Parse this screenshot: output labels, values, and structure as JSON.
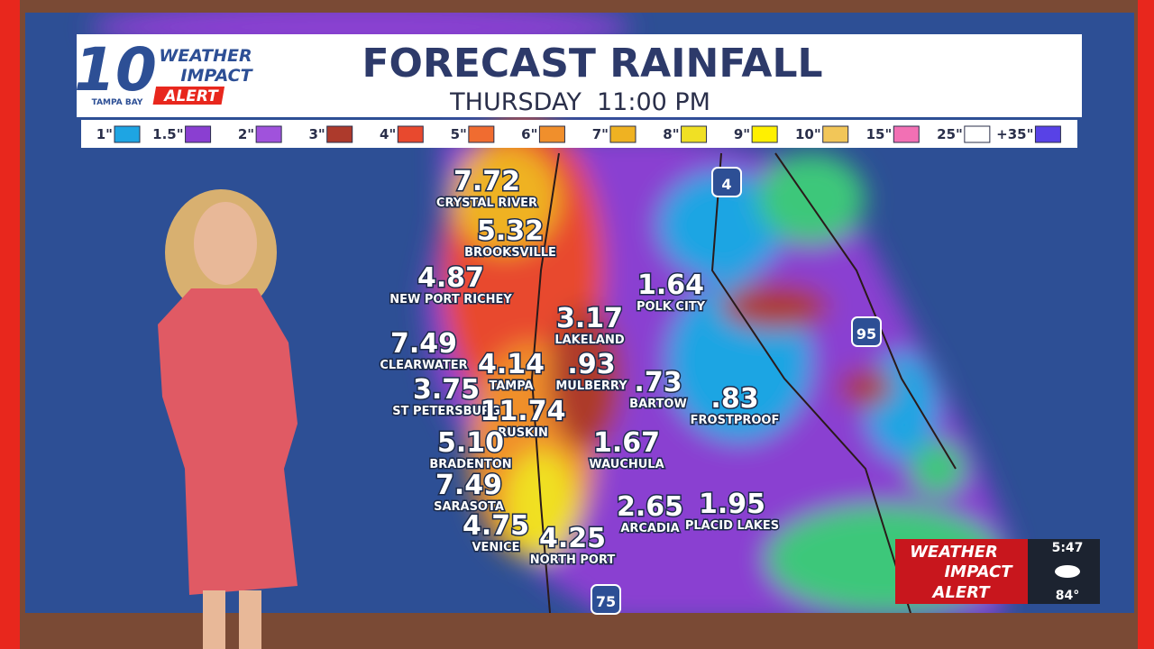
{
  "header": {
    "brand_number": "10",
    "brand_station": "TAMPA BAY",
    "brand_line1": "WEATHER",
    "brand_line2": "IMPACT",
    "brand_line3": "ALERT",
    "title": "FORECAST RAINFALL",
    "subtitle_day": "THURSDAY",
    "subtitle_time": "11:00 PM"
  },
  "legend": [
    {
      "label": "1\"",
      "color": "#1ea5e3"
    },
    {
      "label": "1.5\"",
      "color": "#8a3fd1"
    },
    {
      "label": "2\"",
      "color": "#a052dc"
    },
    {
      "label": "3\"",
      "color": "#ad3a2c"
    },
    {
      "label": "4\"",
      "color": "#e8492e"
    },
    {
      "label": "5\"",
      "color": "#f06c30"
    },
    {
      "label": "6\"",
      "color": "#f08f2c"
    },
    {
      "label": "7\"",
      "color": "#efb222"
    },
    {
      "label": "8\"",
      "color": "#f0e024"
    },
    {
      "label": "9\"",
      "color": "#fff000"
    },
    {
      "label": "10\"",
      "color": "#f2c658"
    },
    {
      "label": "15\"",
      "color": "#f270b4"
    },
    {
      "label": "25\"",
      "color": "#ffffff"
    },
    {
      "label": "+35\"",
      "color": "#5842e6"
    }
  ],
  "cities": [
    {
      "value": "7.72",
      "name": "CRYSTAL RIVER"
    },
    {
      "value": "5.32",
      "name": "BROOKSVILLE"
    },
    {
      "value": "4.87",
      "name": "NEW PORT RICHEY"
    },
    {
      "value": "1.64",
      "name": "POLK CITY"
    },
    {
      "value": "3.17",
      "name": "LAKELAND"
    },
    {
      "value": "7.49",
      "name": "CLEARWATER"
    },
    {
      "value": "4.14",
      "name": "TAMPA"
    },
    {
      "value": ".93",
      "name": "MULBERRY"
    },
    {
      "value": ".73",
      "name": "BARTOW"
    },
    {
      "value": "3.75",
      "name": "ST PETERSBURG"
    },
    {
      "value": "11.74",
      "name": "RUSKIN"
    },
    {
      "value": ".83",
      "name": "FROSTPROOF"
    },
    {
      "value": "5.10",
      "name": "BRADENTON"
    },
    {
      "value": "1.67",
      "name": "WAUCHULA"
    },
    {
      "value": "7.49",
      "name": "SARASOTA"
    },
    {
      "value": "2.65",
      "name": "ARCADIA"
    },
    {
      "value": "1.95",
      "name": "PLACID LAKES"
    },
    {
      "value": "4.75",
      "name": "VENICE"
    },
    {
      "value": "4.25",
      "name": "NORTH PORT"
    }
  ],
  "highways": [
    "4",
    "95",
    "75"
  ],
  "bug": {
    "line1": "WEATHER",
    "line2": "IMPACT",
    "line3": "ALERT",
    "time": "5:47",
    "temp": "84°"
  }
}
